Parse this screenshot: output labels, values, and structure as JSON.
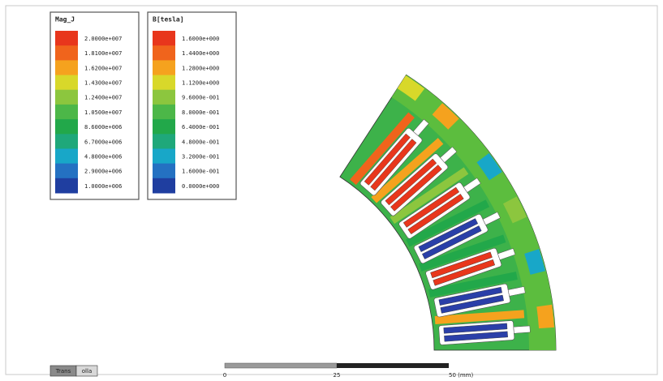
{
  "legends": [
    {
      "title": "Mag_J",
      "labels": [
        "2.0000e+007",
        "1.8100e+007",
        "1.6200e+007",
        "1.4300e+007",
        "1.2400e+007",
        "1.0500e+007",
        "8.6000e+006",
        "6.7000e+006",
        "4.8000e+006",
        "2.9000e+006",
        "1.0000e+006"
      ]
    },
    {
      "title": "B[tesla]",
      "labels": [
        "1.6000e+000",
        "1.4400e+000",
        "1.2800e+000",
        "1.1200e+000",
        "9.6000e-001",
        "8.0000e-001",
        "6.4000e-001",
        "4.8000e-001",
        "3.2000e-001",
        "1.6000e-001",
        "0.0000e+000"
      ]
    }
  ],
  "scale_bar": {
    "labels": [
      "0",
      "25",
      "50 (mm)"
    ]
  },
  "tabs": [
    "Trans",
    "olla"
  ]
}
